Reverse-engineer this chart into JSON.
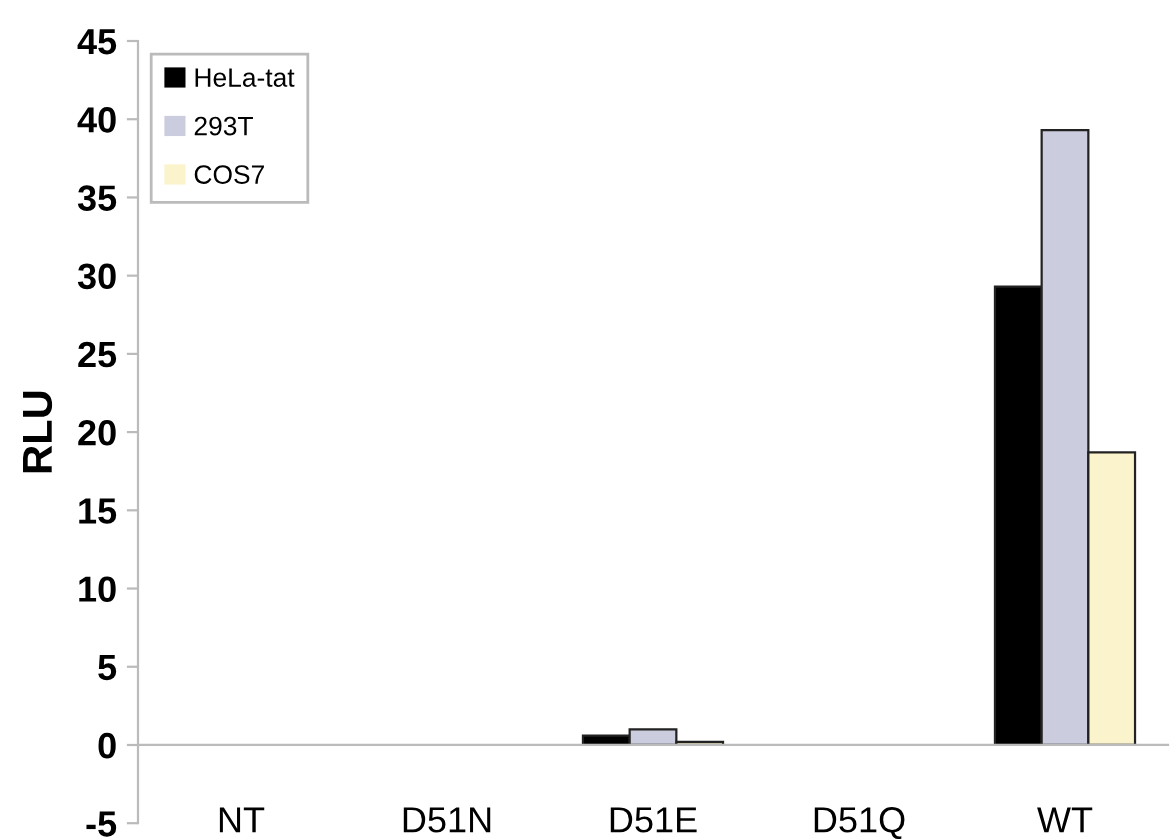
{
  "chart_data": {
    "type": "bar",
    "ylabel": "RLU",
    "categories": [
      "NT",
      "D51N",
      "D51E",
      "D51Q",
      "WT"
    ],
    "series": [
      {
        "name": "HeLa-tat",
        "color": "#000000",
        "values": [
          0,
          0,
          0.6,
          0,
          29.3
        ]
      },
      {
        "name": "293T",
        "color": "#ccccdf",
        "values": [
          0,
          0,
          1.0,
          0,
          39.3
        ]
      },
      {
        "name": "COS7",
        "color": "#fbf3cb",
        "values": [
          0,
          0,
          0.2,
          0,
          18.7
        ]
      }
    ],
    "ylim": [
      -5,
      45
    ],
    "yticks": [
      -5,
      0,
      5,
      10,
      15,
      20,
      25,
      30,
      35,
      40,
      45
    ],
    "legend": "top left"
  }
}
